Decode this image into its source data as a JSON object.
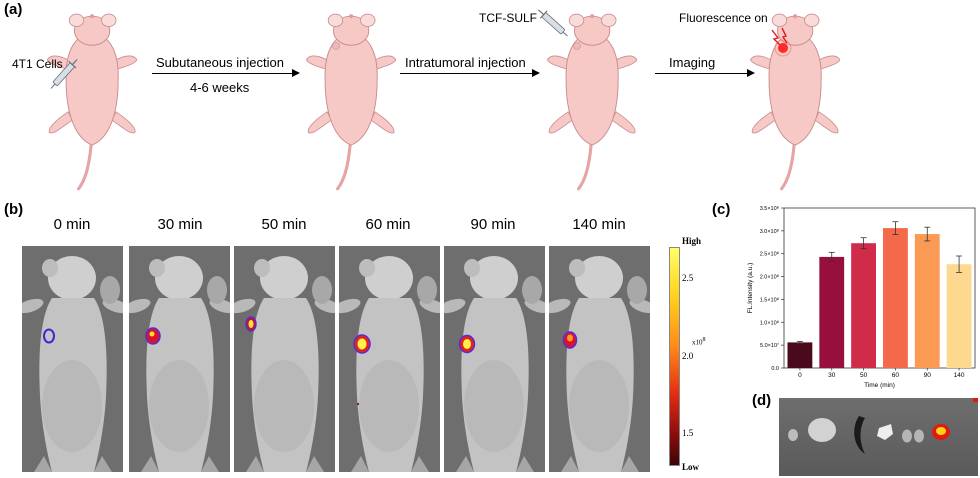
{
  "panels": {
    "a": "(a)",
    "b": "(b)",
    "c": "(c)",
    "d": "(d)"
  },
  "schematic": {
    "cells_label": "4T1 Cells",
    "step1_top": "Subutaneous injection",
    "step1_bottom": "4-6 weeks",
    "step2": "Intratumoral injection",
    "probe_label": "TCF-SULF",
    "step3": "Imaging",
    "fluor_label": "Fluorescence on"
  },
  "imaging": {
    "times": [
      "0 min",
      "30 min",
      "50 min",
      "60 min",
      "90 min",
      "140 min"
    ],
    "colorbar": {
      "high": "High",
      "low": "Low",
      "ticks": [
        "2.5",
        "2.0",
        "1.5"
      ],
      "tick_values": [
        2.5,
        2.0,
        1.5
      ],
      "exponent_label": "x10",
      "exponent_power": "8"
    }
  },
  "chart_data": {
    "type": "bar",
    "categories": [
      "0",
      "30",
      "50",
      "60",
      "90",
      "140"
    ],
    "values": [
      56000000.0,
      243000000.0,
      273000000.0,
      306000000.0,
      293000000.0,
      227000000.0
    ],
    "errors": [
      2000000.0,
      10000000.0,
      12000000.0,
      14000000.0,
      15000000.0,
      18000000.0
    ],
    "colors": [
      "#4a0a1c",
      "#970f3c",
      "#d12b4a",
      "#f3694a",
      "#fb9a55",
      "#fcd98e"
    ],
    "xlabel": "Time (min)",
    "ylabel": "FL.Intensity (a.u.)",
    "ylim": [
      0,
      350000000.0
    ],
    "yticks": [
      {
        "v": 0,
        "label": "0.0"
      },
      {
        "v": 50000000.0,
        "label": "5.0×10⁷"
      },
      {
        "v": 100000000.0,
        "label": "1.0×10⁸"
      },
      {
        "v": 150000000.0,
        "label": "1.5×10⁸"
      },
      {
        "v": 200000000.0,
        "label": "2.0×10⁸"
      },
      {
        "v": 250000000.0,
        "label": "2.5×10⁸"
      },
      {
        "v": 300000000.0,
        "label": "3.0×10⁸"
      },
      {
        "v": 350000000.0,
        "label": "3.5×10⁸"
      }
    ]
  }
}
